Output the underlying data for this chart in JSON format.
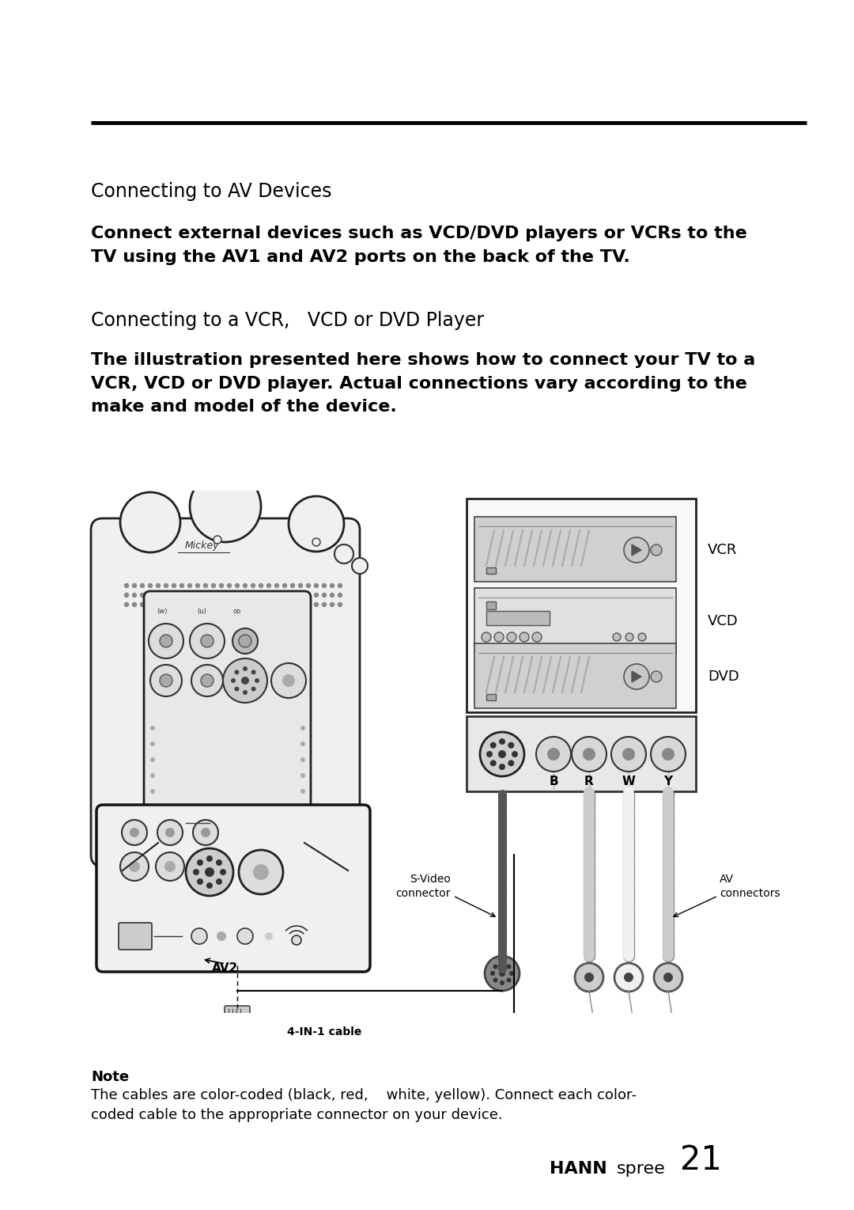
{
  "bg_color": "#ffffff",
  "text_color": "#000000",
  "title1": "Connecting to AV Devices",
  "body1": "Connect external devices such as VCD/DVD players or VCRs to the\nTV using the AV1 and AV2 ports on the back of the TV.",
  "title2": "Connecting to a VCR,   VCD or DVD Player",
  "body2": "The illustration presented here shows how to connect your TV to a\nVCR, VCD or DVD player. Actual connections vary according to the\nmake and model of the device.",
  "note_title": "Note",
  "note_body": "The cables are color-coded (black, red,    white, yellow). Connect each color-\ncoded cable to the appropriate connector on your device.",
  "brand_bold": "HANN",
  "brand_light": "spree",
  "page_num": "21"
}
